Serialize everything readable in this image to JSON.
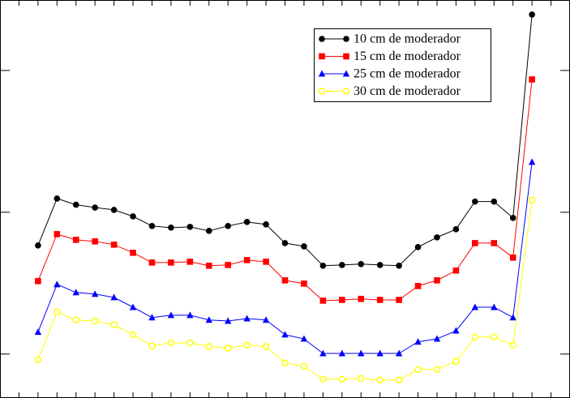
{
  "chart_data": {
    "type": "line",
    "log_scale": true,
    "legend": "upper right",
    "x": [
      1,
      2,
      3,
      4,
      5,
      6,
      7,
      8,
      9,
      10,
      11,
      12,
      13,
      14,
      15,
      16,
      17,
      18,
      19,
      20,
      21,
      22,
      23,
      24,
      25,
      26,
      27
    ],
    "xlim": [
      -1,
      29
    ],
    "xticks": [
      0,
      1,
      2,
      3,
      4,
      5,
      6,
      7,
      8,
      9,
      10,
      11,
      12,
      13,
      14,
      15,
      16,
      17,
      18,
      19,
      20,
      21,
      22,
      23,
      24,
      25,
      26,
      27,
      28
    ],
    "ylim": [
      0.49,
      314
    ],
    "yticks": [
      1,
      10,
      100
    ],
    "series": [
      {
        "name": "10 cm de moderador",
        "color": "#000000",
        "marker": "circle",
        "values": [
          5.83,
          12.5,
          11.3,
          10.8,
          10.4,
          9.36,
          8.0,
          7.79,
          7.89,
          7.39,
          8.0,
          8.54,
          8.21,
          6.06,
          5.75,
          4.2,
          4.25,
          4.31,
          4.25,
          4.2,
          5.68,
          6.65,
          7.59,
          11.9,
          11.9,
          9.12,
          248
        ]
      },
      {
        "name": "15 cm de moderador",
        "color": "#ff0000",
        "marker": "square",
        "values": [
          3.27,
          7.01,
          6.39,
          6.23,
          5.91,
          5.18,
          4.42,
          4.42,
          4.48,
          4.2,
          4.25,
          4.6,
          4.48,
          3.31,
          3.14,
          2.38,
          2.41,
          2.45,
          2.41,
          2.41,
          3.02,
          3.31,
          3.88,
          6.06,
          6.06,
          4.79,
          86.5
        ]
      },
      {
        "name": "25 cm de moderador",
        "color": "#0000ff",
        "marker": "triangle",
        "values": [
          1.43,
          3.1,
          2.72,
          2.65,
          2.51,
          2.14,
          1.81,
          1.88,
          1.88,
          1.74,
          1.71,
          1.78,
          1.74,
          1.37,
          1.28,
          1.01,
          1.01,
          1.01,
          1.01,
          1.01,
          1.22,
          1.28,
          1.46,
          2.14,
          2.14,
          1.81,
          22.6
        ]
      },
      {
        "name": "30 cm de moderador",
        "color": "#ffff00",
        "marker": "open-circle",
        "values": [
          0.912,
          1.98,
          1.74,
          1.71,
          1.61,
          1.37,
          1.14,
          1.2,
          1.2,
          1.13,
          1.1,
          1.16,
          1.13,
          0.865,
          0.821,
          0.665,
          0.665,
          0.674,
          0.656,
          0.656,
          0.779,
          0.779,
          0.888,
          1.32,
          1.32,
          1.16,
          12.2
        ]
      }
    ]
  }
}
